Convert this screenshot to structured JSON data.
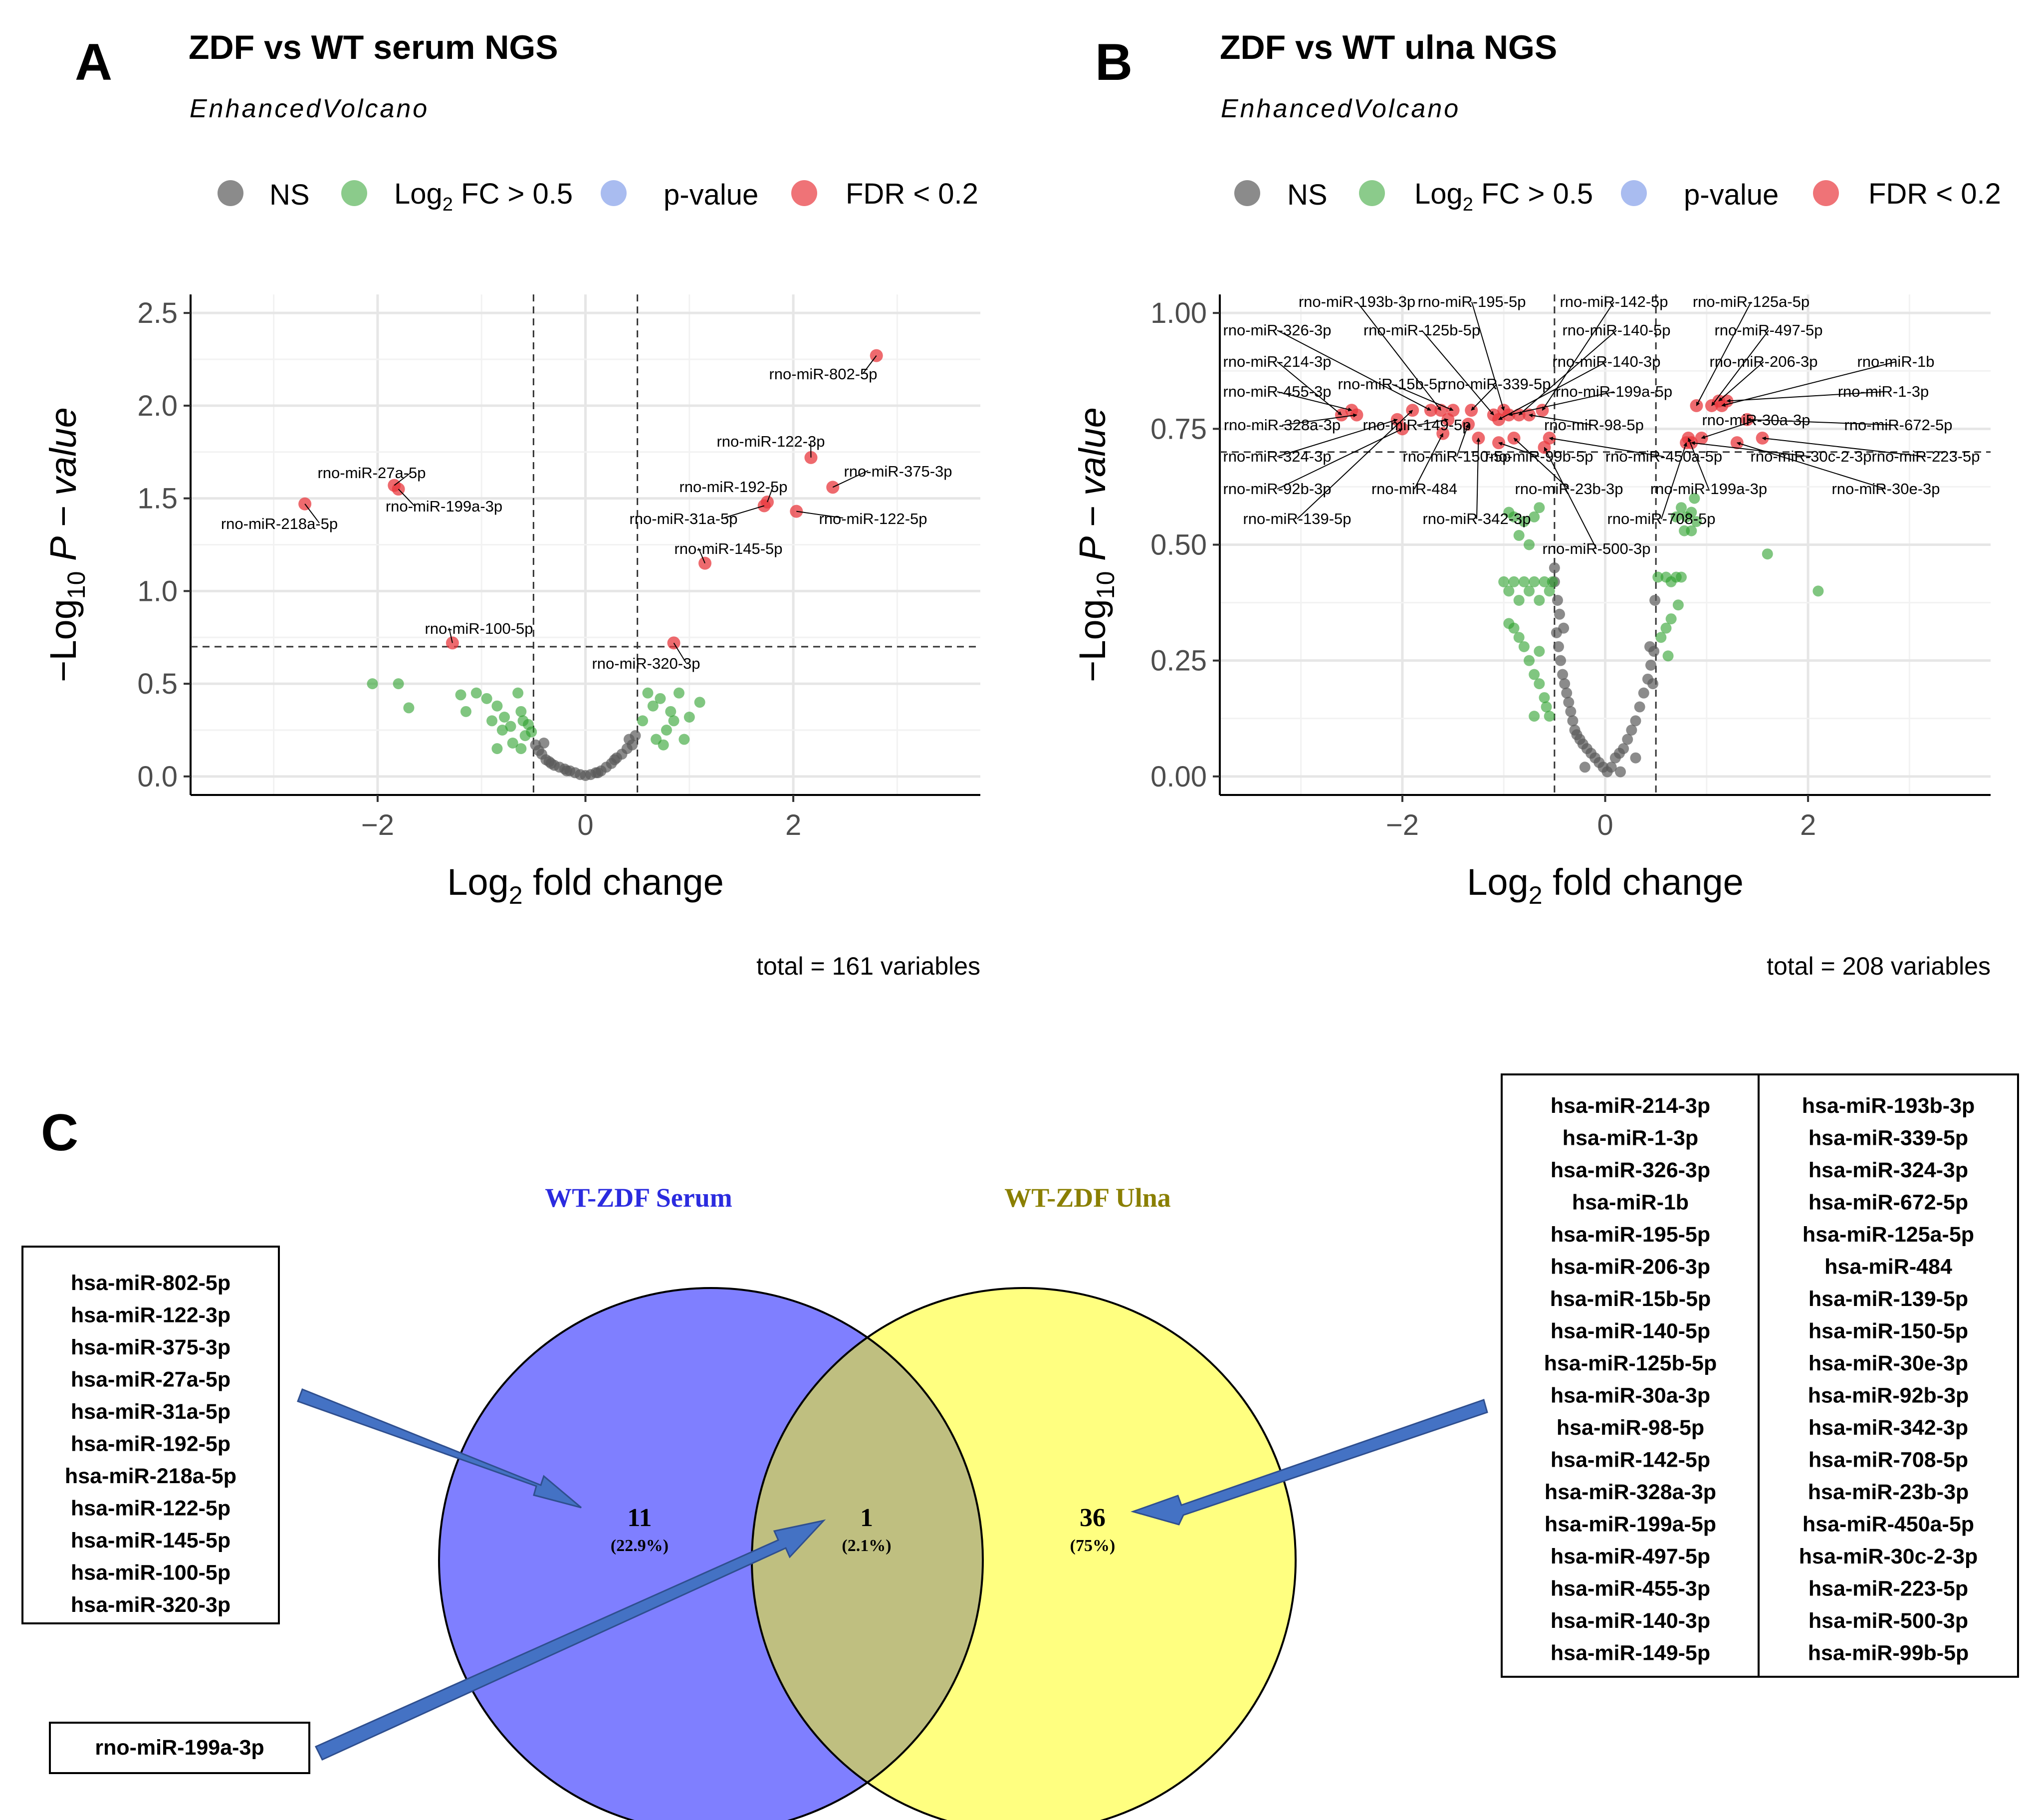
{
  "panels": {
    "a": {
      "letter": "A",
      "title": "ZDF vs WT serum NGS",
      "subtitle": "EnhancedVolcano",
      "caption": "total = 161 variables"
    },
    "b": {
      "letter": "B",
      "title": "ZDF vs WT ulna NGS",
      "subtitle": "EnhancedVolcano",
      "caption": "total = 208 variables"
    },
    "c": {
      "letter": "C"
    }
  },
  "legend": {
    "ns": "NS",
    "fc_prefix": "Log",
    "fc_sub": "2",
    "fc_suffix": " FC > 0.5",
    "pvalue": "p-value",
    "fdr": "FDR < 0.2"
  },
  "axis": {
    "x_prefix": "Log",
    "x_sub": "2",
    "x_suffix": " fold change",
    "y_lead": "−Log",
    "y_sub": "10",
    "y_p": " P",
    "y_tail": " − value"
  },
  "colors": {
    "ns": "#5a5a5a",
    "fc": "#2ca02c",
    "pvalue": "#6f8fe6",
    "fdr": "#e8383d",
    "grid": "#ebebeb",
    "venn_left": "#7f7fff",
    "venn_right": "#ffff80",
    "venn_overlap": "#bfbf80",
    "arrow": "#4472c4",
    "serum_title": "#2b2bdf",
    "ulna_title": "#8a7f00",
    "highlight": "#ff0000"
  },
  "chart_data": [
    {
      "type": "scatter",
      "title": "ZDF vs WT serum NGS",
      "subtitle": "EnhancedVolcano",
      "xlabel": "Log2 fold change",
      "ylabel": "-Log10 P - value",
      "xlim": [
        -3.8,
        3.8
      ],
      "ylim": [
        -0.1,
        2.6
      ],
      "xticks": [
        -2,
        0,
        2
      ],
      "yticks": [
        0.0,
        0.5,
        1.0,
        1.5,
        2.0,
        2.5
      ],
      "ytick_labels": [
        "0.0",
        "0.5",
        "1.0",
        "1.5",
        "2.0",
        "2.5"
      ],
      "fc_cutoff": 0.5,
      "p_cutoff_line": 0.7,
      "legend_position": "top",
      "significant": [
        {
          "label": "rno-miR-802-5p",
          "x": 2.8,
          "y": 2.27
        },
        {
          "label": "rno-miR-122-3p",
          "x": 2.17,
          "y": 1.72
        },
        {
          "label": "rno-miR-375-3p",
          "x": 2.38,
          "y": 1.56
        },
        {
          "label": "rno-miR-192-5p",
          "x": 1.75,
          "y": 1.48
        },
        {
          "label": "rno-miR-31a-5p",
          "x": 1.72,
          "y": 1.46
        },
        {
          "label": "rno-miR-122-5p",
          "x": 2.03,
          "y": 1.43
        },
        {
          "label": "rno-miR-145-5p",
          "x": 1.15,
          "y": 1.15
        },
        {
          "label": "rno-miR-27a-5p",
          "x": -1.84,
          "y": 1.57
        },
        {
          "label": "rno-miR-199a-3p",
          "x": -1.8,
          "y": 1.55
        },
        {
          "label": "rno-miR-218a-5p",
          "x": -2.7,
          "y": 1.47
        },
        {
          "label": "rno-miR-100-5p",
          "x": -1.28,
          "y": 0.72
        },
        {
          "label": "rno-miR-320-3p",
          "x": 0.85,
          "y": 0.72
        }
      ],
      "fc_points": [
        [
          -2.05,
          0.5
        ],
        [
          -1.8,
          0.5
        ],
        [
          -1.7,
          0.37
        ],
        [
          -1.2,
          0.44
        ],
        [
          -1.15,
          0.35
        ],
        [
          -1.05,
          0.45
        ],
        [
          -0.95,
          0.42
        ],
        [
          -0.9,
          0.3
        ],
        [
          -0.85,
          0.38
        ],
        [
          -0.8,
          0.25
        ],
        [
          -0.78,
          0.32
        ],
        [
          -0.72,
          0.27
        ],
        [
          -0.7,
          0.18
        ],
        [
          -0.65,
          0.45
        ],
        [
          -0.62,
          0.35
        ],
        [
          -0.6,
          0.3
        ],
        [
          -0.58,
          0.22
        ],
        [
          -0.55,
          0.28
        ],
        [
          -0.52,
          0.24
        ],
        [
          -0.85,
          0.15
        ],
        [
          -0.62,
          0.15
        ],
        [
          0.55,
          0.3
        ],
        [
          0.6,
          0.45
        ],
        [
          0.65,
          0.38
        ],
        [
          0.72,
          0.42
        ],
        [
          0.78,
          0.25
        ],
        [
          0.82,
          0.35
        ],
        [
          0.85,
          0.3
        ],
        [
          0.9,
          0.45
        ],
        [
          0.95,
          0.2
        ],
        [
          1.0,
          0.32
        ],
        [
          1.1,
          0.4
        ],
        [
          0.68,
          0.2
        ],
        [
          0.75,
          0.17
        ]
      ],
      "ns_points": [
        [
          -0.48,
          0.17
        ],
        [
          -0.45,
          0.14
        ],
        [
          -0.42,
          0.12
        ],
        [
          -0.38,
          0.09
        ],
        [
          -0.35,
          0.08
        ],
        [
          -0.3,
          0.06
        ],
        [
          -0.25,
          0.05
        ],
        [
          -0.2,
          0.04
        ],
        [
          -0.15,
          0.03
        ],
        [
          -0.1,
          0.02
        ],
        [
          -0.05,
          0.01
        ],
        [
          0.0,
          0.005
        ],
        [
          0.05,
          0.01
        ],
        [
          0.1,
          0.02
        ],
        [
          0.15,
          0.03
        ],
        [
          0.2,
          0.05
        ],
        [
          0.25,
          0.07
        ],
        [
          0.3,
          0.1
        ],
        [
          0.35,
          0.12
        ],
        [
          0.4,
          0.15
        ],
        [
          0.45,
          0.17
        ],
        [
          -0.33,
          0.07
        ],
        [
          -0.18,
          0.03
        ],
        [
          0.12,
          0.02
        ],
        [
          0.28,
          0.09
        ],
        [
          0.42,
          0.2
        ],
        [
          -0.4,
          0.18
        ],
        [
          0.48,
          0.22
        ]
      ]
    },
    {
      "type": "scatter",
      "title": "ZDF vs WT ulna NGS",
      "subtitle": "EnhancedVolcano",
      "xlabel": "Log2 fold change",
      "ylabel": "-Log10 P - value",
      "xlim": [
        -3.8,
        3.8
      ],
      "ylim": [
        -0.04,
        1.04
      ],
      "xticks": [
        -2,
        0,
        2
      ],
      "yticks": [
        0.0,
        0.25,
        0.5,
        0.75,
        1.0
      ],
      "ytick_labels": [
        "0.00",
        "0.25",
        "0.50",
        "0.75",
        "1.00"
      ],
      "fc_cutoff": 0.5,
      "p_cutoff_line": 0.7,
      "legend_position": "top",
      "significant": [
        {
          "label": "rno-miR-193b-3p",
          "x": -1.62,
          "y": 0.79
        },
        {
          "label": "rno-miR-195-5p",
          "x": -1.0,
          "y": 0.79
        },
        {
          "label": "rno-miR-142-5p",
          "x": -0.62,
          "y": 0.79
        },
        {
          "label": "rno-miR-125a-5p",
          "x": 0.9,
          "y": 0.8
        },
        {
          "label": "rno-miR-326-3p",
          "x": -1.72,
          "y": 0.79
        },
        {
          "label": "rno-miR-125b-5p",
          "x": -1.1,
          "y": 0.78
        },
        {
          "label": "rno-miR-140-5p",
          "x": -0.85,
          "y": 0.78
        },
        {
          "label": "rno-miR-497-5p",
          "x": 1.05,
          "y": 0.8
        },
        {
          "label": "rno-miR-214-3p",
          "x": -2.6,
          "y": 0.78
        },
        {
          "label": "rno-miR-140-3p",
          "x": -1.05,
          "y": 0.77
        },
        {
          "label": "rno-miR-206-3p",
          "x": 1.12,
          "y": 0.81
        },
        {
          "label": "rno-miR-1b",
          "x": 1.15,
          "y": 0.8
        },
        {
          "label": "rno-miR-455-3p",
          "x": -2.5,
          "y": 0.79
        },
        {
          "label": "rno-miR-15b-5p",
          "x": -1.5,
          "y": 0.79
        },
        {
          "label": "rno-miR-339-5p",
          "x": -1.32,
          "y": 0.79
        },
        {
          "label": "rno-miR-199a-5p",
          "x": -0.95,
          "y": 0.78
        },
        {
          "label": "rno-miR-1-3p",
          "x": 1.2,
          "y": 0.81
        },
        {
          "label": "rno-miR-328a-3p",
          "x": -2.45,
          "y": 0.78
        },
        {
          "label": "rno-miR-149-5p",
          "x": -1.55,
          "y": 0.77
        },
        {
          "label": "rno-miR-98-5p",
          "x": -0.75,
          "y": 0.78
        },
        {
          "label": "rno-miR-30a-3p",
          "x": 0.95,
          "y": 0.73
        },
        {
          "label": "rno-miR-672-5p",
          "x": 1.4,
          "y": 0.77
        },
        {
          "label": "rno-miR-324-3p",
          "x": -2.05,
          "y": 0.77
        },
        {
          "label": "rno-miR-150-5p",
          "x": -1.35,
          "y": 0.76
        },
        {
          "label": "rno-miR-99b-5p",
          "x": -1.05,
          "y": 0.72
        },
        {
          "label": "rno-miR-450a-5p",
          "x": -0.55,
          "y": 0.73
        },
        {
          "label": "rno-miR-30c-2-3p",
          "x": 0.85,
          "y": 0.72
        },
        {
          "label": "rno-miR-223-5p",
          "x": 1.55,
          "y": 0.73
        },
        {
          "label": "rno-miR-92b-3p",
          "x": -2.0,
          "y": 0.75
        },
        {
          "label": "rno-miR-484",
          "x": -1.6,
          "y": 0.74
        },
        {
          "label": "rno-miR-23b-3p",
          "x": -0.9,
          "y": 0.73
        },
        {
          "label": "rno-miR-199a-3p",
          "x": 0.82,
          "y": 0.73
        },
        {
          "label": "rno-miR-30e-3p",
          "x": 1.3,
          "y": 0.72
        },
        {
          "label": "rno-miR-139-5p",
          "x": -1.9,
          "y": 0.79
        },
        {
          "label": "rno-miR-342-3p",
          "x": -1.25,
          "y": 0.73
        },
        {
          "label": "rno-miR-708-5p",
          "x": 0.8,
          "y": 0.72
        },
        {
          "label": "rno-miR-500-3p",
          "x": -0.6,
          "y": 0.71
        }
      ],
      "fc_points": [
        [
          -0.95,
          0.57
        ],
        [
          -0.9,
          0.56
        ],
        [
          -0.85,
          0.52
        ],
        [
          -0.8,
          0.55
        ],
        [
          -0.75,
          0.5
        ],
        [
          -0.7,
          0.56
        ],
        [
          -0.65,
          0.58
        ],
        [
          -1.0,
          0.42
        ],
        [
          -0.95,
          0.4
        ],
        [
          -0.9,
          0.42
        ],
        [
          -0.85,
          0.38
        ],
        [
          -0.8,
          0.42
        ],
        [
          -0.75,
          0.4
        ],
        [
          -0.7,
          0.42
        ],
        [
          -0.65,
          0.38
        ],
        [
          -0.6,
          0.42
        ],
        [
          -0.55,
          0.4
        ],
        [
          -0.52,
          0.42
        ],
        [
          -0.95,
          0.33
        ],
        [
          -0.9,
          0.32
        ],
        [
          -0.85,
          0.3
        ],
        [
          -0.8,
          0.28
        ],
        [
          -0.75,
          0.25
        ],
        [
          -0.7,
          0.22
        ],
        [
          -0.65,
          0.2
        ],
        [
          -0.6,
          0.17
        ],
        [
          -0.58,
          0.15
        ],
        [
          -0.55,
          0.13
        ],
        [
          -0.7,
          0.13
        ],
        [
          -0.65,
          0.27
        ],
        [
          0.52,
          0.43
        ],
        [
          0.6,
          0.43
        ],
        [
          0.65,
          0.42
        ],
        [
          0.7,
          0.43
        ],
        [
          0.75,
          0.43
        ],
        [
          0.72,
          0.37
        ],
        [
          0.65,
          0.34
        ],
        [
          0.6,
          0.32
        ],
        [
          0.55,
          0.3
        ],
        [
          0.62,
          0.26
        ],
        [
          0.7,
          0.56
        ],
        [
          0.75,
          0.58
        ],
        [
          0.8,
          0.56
        ],
        [
          0.85,
          0.57
        ],
        [
          0.88,
          0.6
        ],
        [
          0.78,
          0.53
        ],
        [
          0.85,
          0.53
        ],
        [
          0.9,
          0.55
        ],
        [
          1.6,
          0.48
        ],
        [
          2.1,
          0.4
        ]
      ],
      "ns_points": [
        [
          -0.48,
          0.31
        ],
        [
          -0.46,
          0.28
        ],
        [
          -0.44,
          0.25
        ],
        [
          -0.42,
          0.22
        ],
        [
          -0.4,
          0.2
        ],
        [
          -0.38,
          0.18
        ],
        [
          -0.36,
          0.16
        ],
        [
          -0.34,
          0.14
        ],
        [
          -0.32,
          0.12
        ],
        [
          -0.3,
          0.1
        ],
        [
          -0.28,
          0.09
        ],
        [
          -0.25,
          0.08
        ],
        [
          -0.22,
          0.07
        ],
        [
          -0.18,
          0.06
        ],
        [
          -0.14,
          0.05
        ],
        [
          -0.1,
          0.04
        ],
        [
          -0.06,
          0.03
        ],
        [
          -0.02,
          0.02
        ],
        [
          0.02,
          0.01
        ],
        [
          0.06,
          0.02
        ],
        [
          0.1,
          0.04
        ],
        [
          0.14,
          0.05
        ],
        [
          0.18,
          0.06
        ],
        [
          0.22,
          0.08
        ],
        [
          0.26,
          0.1
        ],
        [
          0.3,
          0.12
        ],
        [
          0.34,
          0.15
        ],
        [
          0.38,
          0.18
        ],
        [
          0.42,
          0.21
        ],
        [
          0.45,
          0.24
        ],
        [
          0.48,
          0.27
        ],
        [
          0.47,
          0.2
        ],
        [
          -0.47,
          0.38
        ],
        [
          -0.45,
          0.35
        ],
        [
          -0.5,
          0.42
        ],
        [
          0.49,
          0.38
        ],
        [
          0.44,
          0.28
        ],
        [
          -0.41,
          0.32
        ],
        [
          -0.5,
          0.45
        ],
        [
          0.3,
          0.04
        ],
        [
          -0.2,
          0.02
        ],
        [
          0.15,
          0.01
        ]
      ]
    }
  ],
  "venn": {
    "left_title": "WT-ZDF Serum",
    "right_title": "WT-ZDF Ulna",
    "left_count": "11",
    "left_pct": "(22.9%)",
    "overlap_count": "1",
    "overlap_pct": "(2.1%)",
    "right_count": "36",
    "right_pct": "(75%)",
    "serum_only": [
      "hsa-miR-802-5p",
      "hsa-miR-122-3p",
      "hsa-miR-375-3p",
      "hsa-miR-27a-5p",
      "hsa-miR-31a-5p",
      "hsa-miR-192-5p",
      "hsa-miR-218a-5p",
      "hsa-miR-122-5p",
      "hsa-miR-145-5p",
      "hsa-miR-100-5p",
      "hsa-miR-320-3p"
    ],
    "shared": "rno-miR-199a-3p",
    "ulna_col1": [
      "hsa-miR-214-3p",
      "hsa-miR-1-3p",
      "hsa-miR-326-3p",
      "hsa-miR-1b",
      "hsa-miR-195-5p",
      "hsa-miR-206-3p",
      "hsa-miR-15b-5p",
      "hsa-miR-140-5p",
      "hsa-miR-125b-5p",
      "hsa-miR-30a-3p",
      "hsa-miR-98-5p",
      "hsa-miR-142-5p",
      "hsa-miR-328a-3p",
      "hsa-miR-199a-5p",
      "hsa-miR-497-5p",
      "hsa-miR-455-3p",
      "hsa-miR-140-3p",
      "hsa-miR-149-5p"
    ],
    "ulna_col2": [
      "hsa-miR-193b-3p",
      "hsa-miR-339-5p",
      "hsa-miR-324-3p",
      "hsa-miR-672-5p",
      "hsa-miR-125a-5p",
      "hsa-miR-484",
      "hsa-miR-139-5p",
      "hsa-miR-150-5p",
      "hsa-miR-30e-3p",
      "hsa-miR-92b-3p",
      "hsa-miR-342-3p",
      "hsa-miR-708-5p",
      "hsa-miR-23b-3p",
      "hsa-miR-450a-5p",
      "hsa-miR-30c-2-3p",
      "hsa-miR-223-5p",
      "hsa-miR-500-3p",
      "hsa-miR-99b-5p"
    ]
  }
}
